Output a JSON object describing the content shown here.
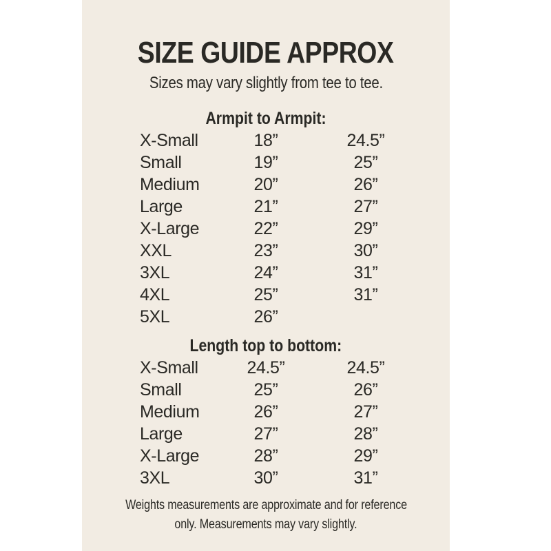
{
  "page": {
    "background_color": "#ffffff",
    "panel_color": "#f2ece3",
    "text_color": "#2a2925"
  },
  "header": {
    "title": "SIZE GUIDE APPROX",
    "subtitle": "Sizes may vary slightly from tee to tee."
  },
  "sections": [
    {
      "heading": "Armpit to Armpit:",
      "rows": [
        {
          "size": "X-Small",
          "measure1": "18”",
          "measure2": "24.5”"
        },
        {
          "size": "Small",
          "measure1": "19”",
          "measure2": "25”"
        },
        {
          "size": "Medium",
          "measure1": "20”",
          "measure2": "26”"
        },
        {
          "size": "Large",
          "measure1": "21”",
          "measure2": "27”"
        },
        {
          "size": "X-Large",
          "measure1": "22”",
          "measure2": "29”"
        },
        {
          "size": "XXL",
          "measure1": "23”",
          "measure2": "30”"
        },
        {
          "size": "3XL",
          "measure1": "24”",
          "measure2": "31”"
        },
        {
          "size": "4XL",
          "measure1": "25”",
          "measure2": "31”"
        },
        {
          "size": "5XL",
          "measure1": "26”",
          "measure2": ""
        }
      ]
    },
    {
      "heading": "Length top to bottom:",
      "rows": [
        {
          "size": "X-Small",
          "measure1": "24.5”",
          "measure2": "24.5”"
        },
        {
          "size": "Small",
          "measure1": "25”",
          "measure2": "26”"
        },
        {
          "size": "Medium",
          "measure1": "26”",
          "measure2": "27”"
        },
        {
          "size": "Large",
          "measure1": "27”",
          "measure2": "28”"
        },
        {
          "size": "X-Large",
          "measure1": "28”",
          "measure2": "29”"
        },
        {
          "size": "3XL",
          "measure1": "30”",
          "measure2": "31”"
        }
      ]
    }
  ],
  "footer": {
    "line1": "Weights measurements are approximate and for reference",
    "line2": "only. Measurements may vary slightly."
  }
}
